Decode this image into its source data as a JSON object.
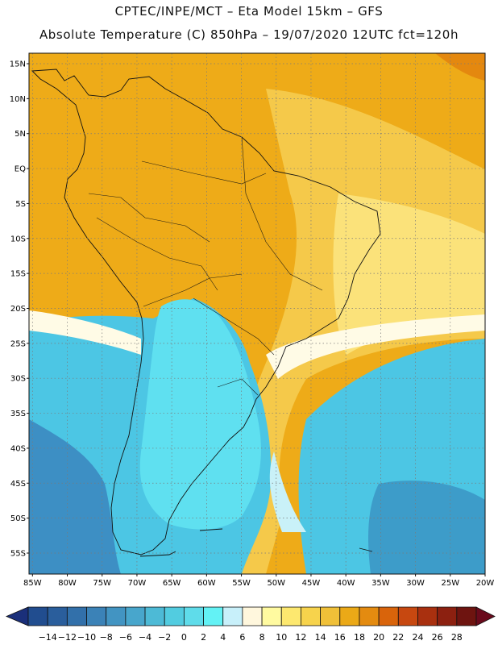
{
  "header": {
    "line1": "CPTEC/INPE/MCT –  Eta Model 15km – GFS",
    "line2": "Absolute Temperature (C) 850hPa – 19/07/2020 12UTC fct=120h"
  },
  "map": {
    "lat_labels": [
      "15N",
      "10N",
      "5N",
      "EQ",
      "5S",
      "10S",
      "15S",
      "20S",
      "25S",
      "30S",
      "35S",
      "40S",
      "45S",
      "50S",
      "55S"
    ],
    "lat_values": [
      15,
      10,
      5,
      0,
      -5,
      -10,
      -15,
      -20,
      -25,
      -30,
      -35,
      -40,
      -45,
      -50,
      -55
    ],
    "lon_labels": [
      "85W",
      "80W",
      "75W",
      "70W",
      "65W",
      "60W",
      "55W",
      "50W",
      "45W",
      "40W",
      "35W",
      "30W",
      "25W",
      "20W"
    ],
    "lon_values": [
      -85,
      -80,
      -75,
      -70,
      -65,
      -60,
      -55,
      -50,
      -45,
      -40,
      -35,
      -30,
      -25,
      -20
    ],
    "lon_range": [
      -85.5,
      -20
    ],
    "lat_range": [
      -58,
      16.5
    ],
    "colors": {
      "ocean_cold": "#3d8fc4",
      "ocean_cool": "#4cc6e4",
      "cyan": "#5fe0f0",
      "light_cyan": "#c9f1f8",
      "cream": "#fffbe6",
      "warm_yellow": "#f0c840",
      "orange": "#eeab18",
      "dark_orange": "#e69510"
    }
  },
  "colorbar": {
    "ticks": [
      "−14",
      "−12",
      "−10",
      "−8",
      "−6",
      "−4",
      "−2",
      "0",
      "2",
      "4",
      "6",
      "8",
      "10",
      "12",
      "14",
      "16",
      "18",
      "20",
      "22",
      "24",
      "26",
      "28"
    ],
    "colors": [
      "#214d8f",
      "#2a5e9c",
      "#3270aa",
      "#3b82b7",
      "#4294c2",
      "#48a6cc",
      "#4dbad6",
      "#52cce0",
      "#5fdcea",
      "#63f2f5",
      "#c8f0fa",
      "#fff7dd",
      "#fffaa0",
      "#fde86f",
      "#f7d34c",
      "#f0c038",
      "#eba917",
      "#e48b10",
      "#d9640b",
      "#c74810",
      "#a9300f",
      "#8c2010",
      "#6e1410"
    ],
    "low_arrow_color": "#1a2f7a",
    "high_arrow_color": "#6a0a1c"
  }
}
